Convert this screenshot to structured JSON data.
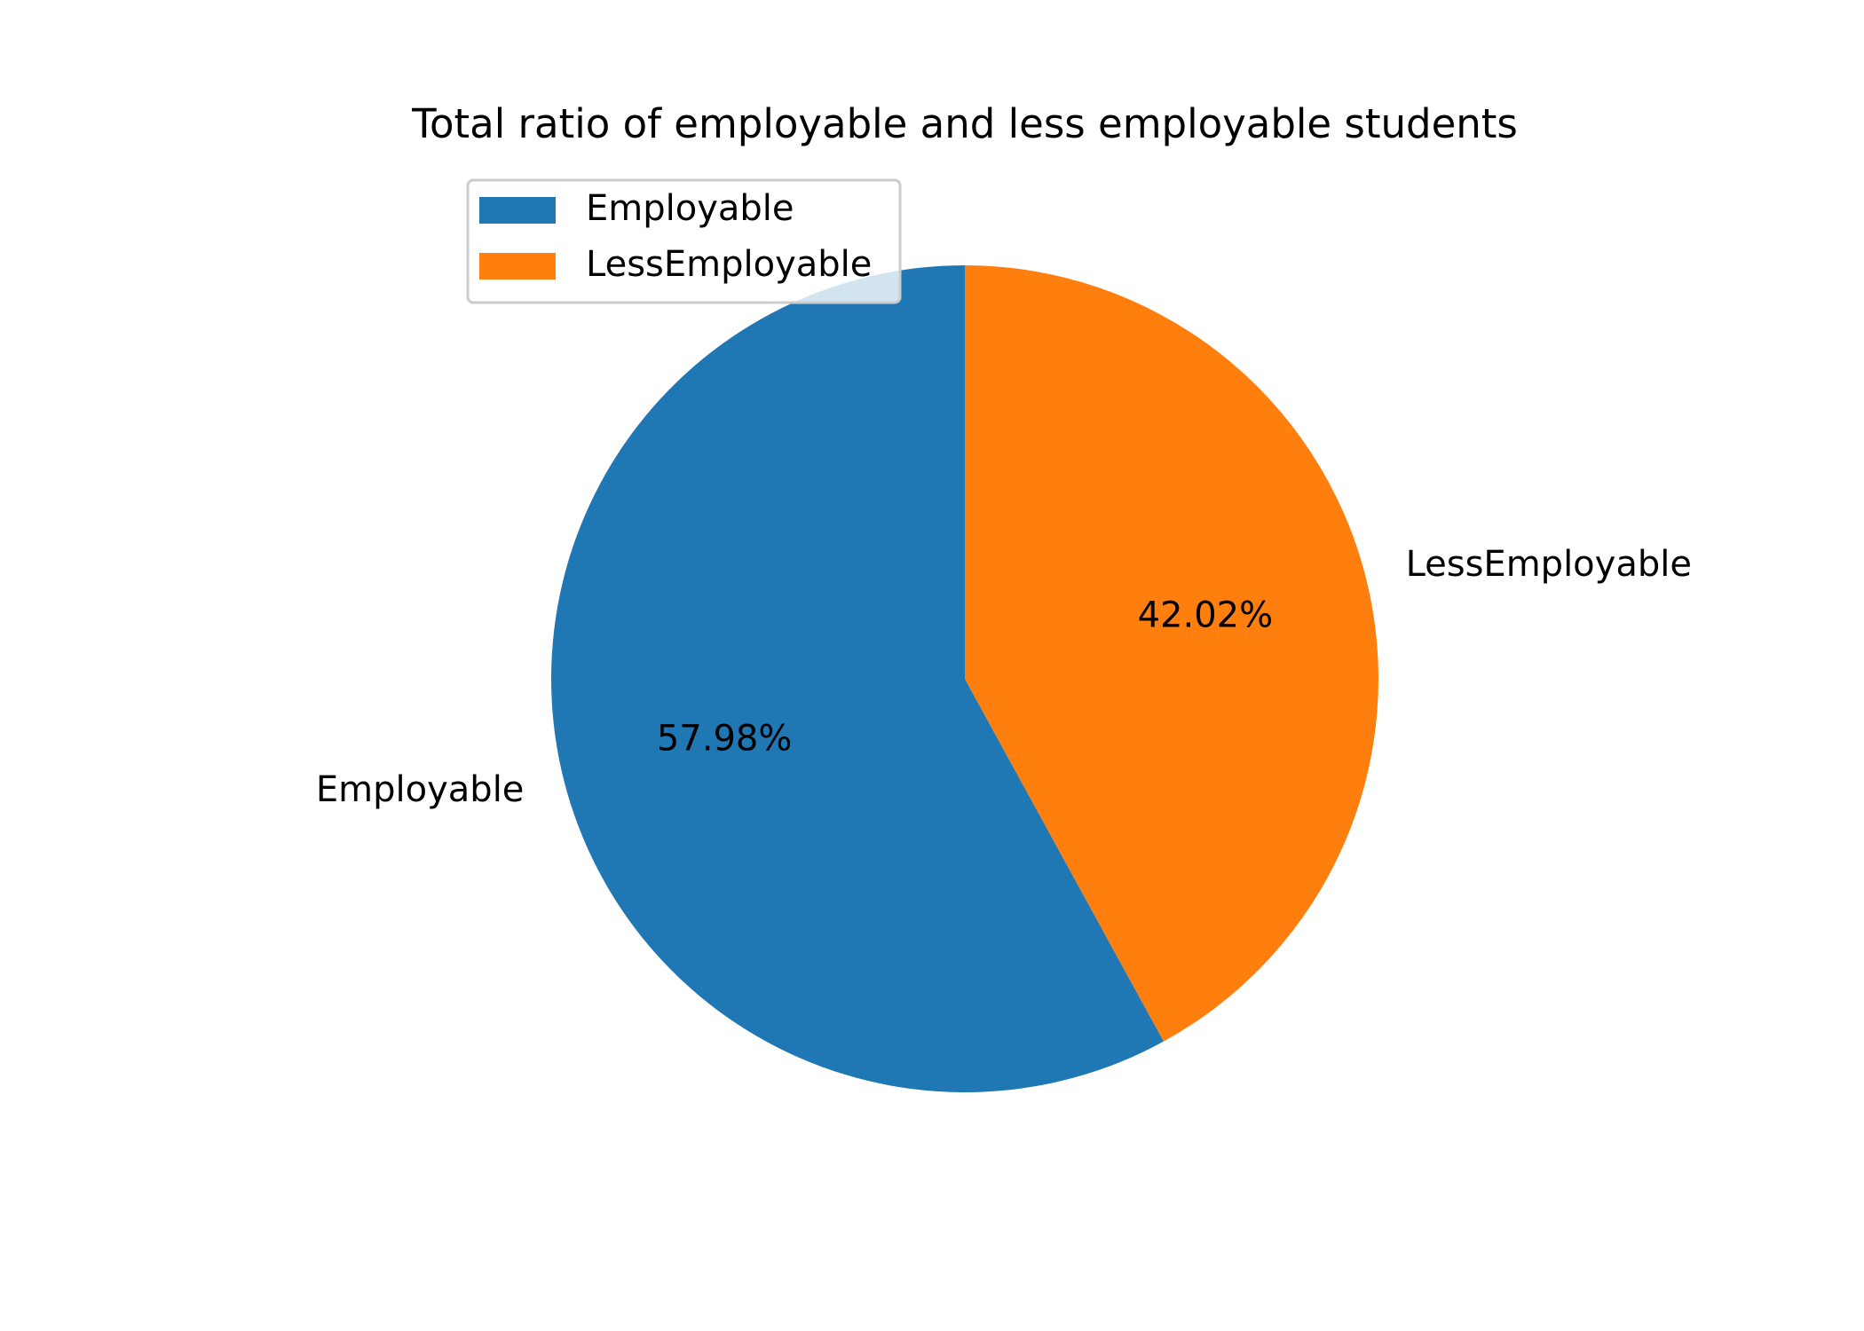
{
  "chart_data": {
    "type": "pie",
    "title": "Total ratio of employable and less employable students",
    "slices": [
      {
        "label": "Employable",
        "value": 57.98,
        "pct_label": "57.98%",
        "color": "#1f77b4"
      },
      {
        "label": "LessEmployable",
        "value": 42.02,
        "pct_label": "42.02%",
        "color": "#ff7f0e"
      }
    ],
    "start_angle_deg": 90,
    "direction": "counterclockwise",
    "legend": {
      "position": "upper-left",
      "entries": [
        "Employable",
        "LessEmployable"
      ]
    }
  }
}
